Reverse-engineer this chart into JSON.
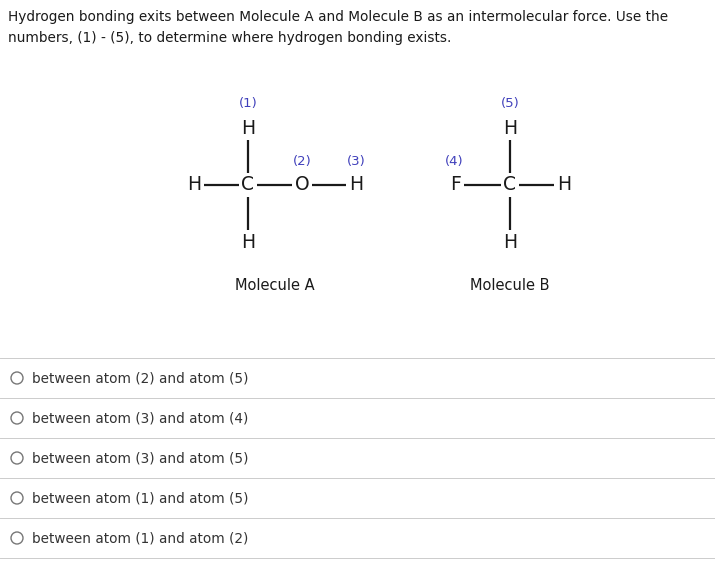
{
  "title_text": "Hydrogen bonding exits between Molecule A and Molecule B as an intermolecular force. Use the\nnumbers, (1) - (5), to determine where hydrogen bonding exists.",
  "bg_color": "#ffffff",
  "text_color": "#1a1a1a",
  "number_color": "#4040bb",
  "mol_a_label": "Molecule A",
  "mol_b_label": "Molecule B",
  "options": [
    "between atom (2) and atom (5)",
    "between atom (3) and atom (4)",
    "between atom (3) and atom (5)",
    "between atom (1) and atom (5)",
    "between atom (1) and atom (2)"
  ],
  "divider_color": "#cccccc",
  "figsize": [
    7.15,
    5.64
  ],
  "dpi": 100
}
